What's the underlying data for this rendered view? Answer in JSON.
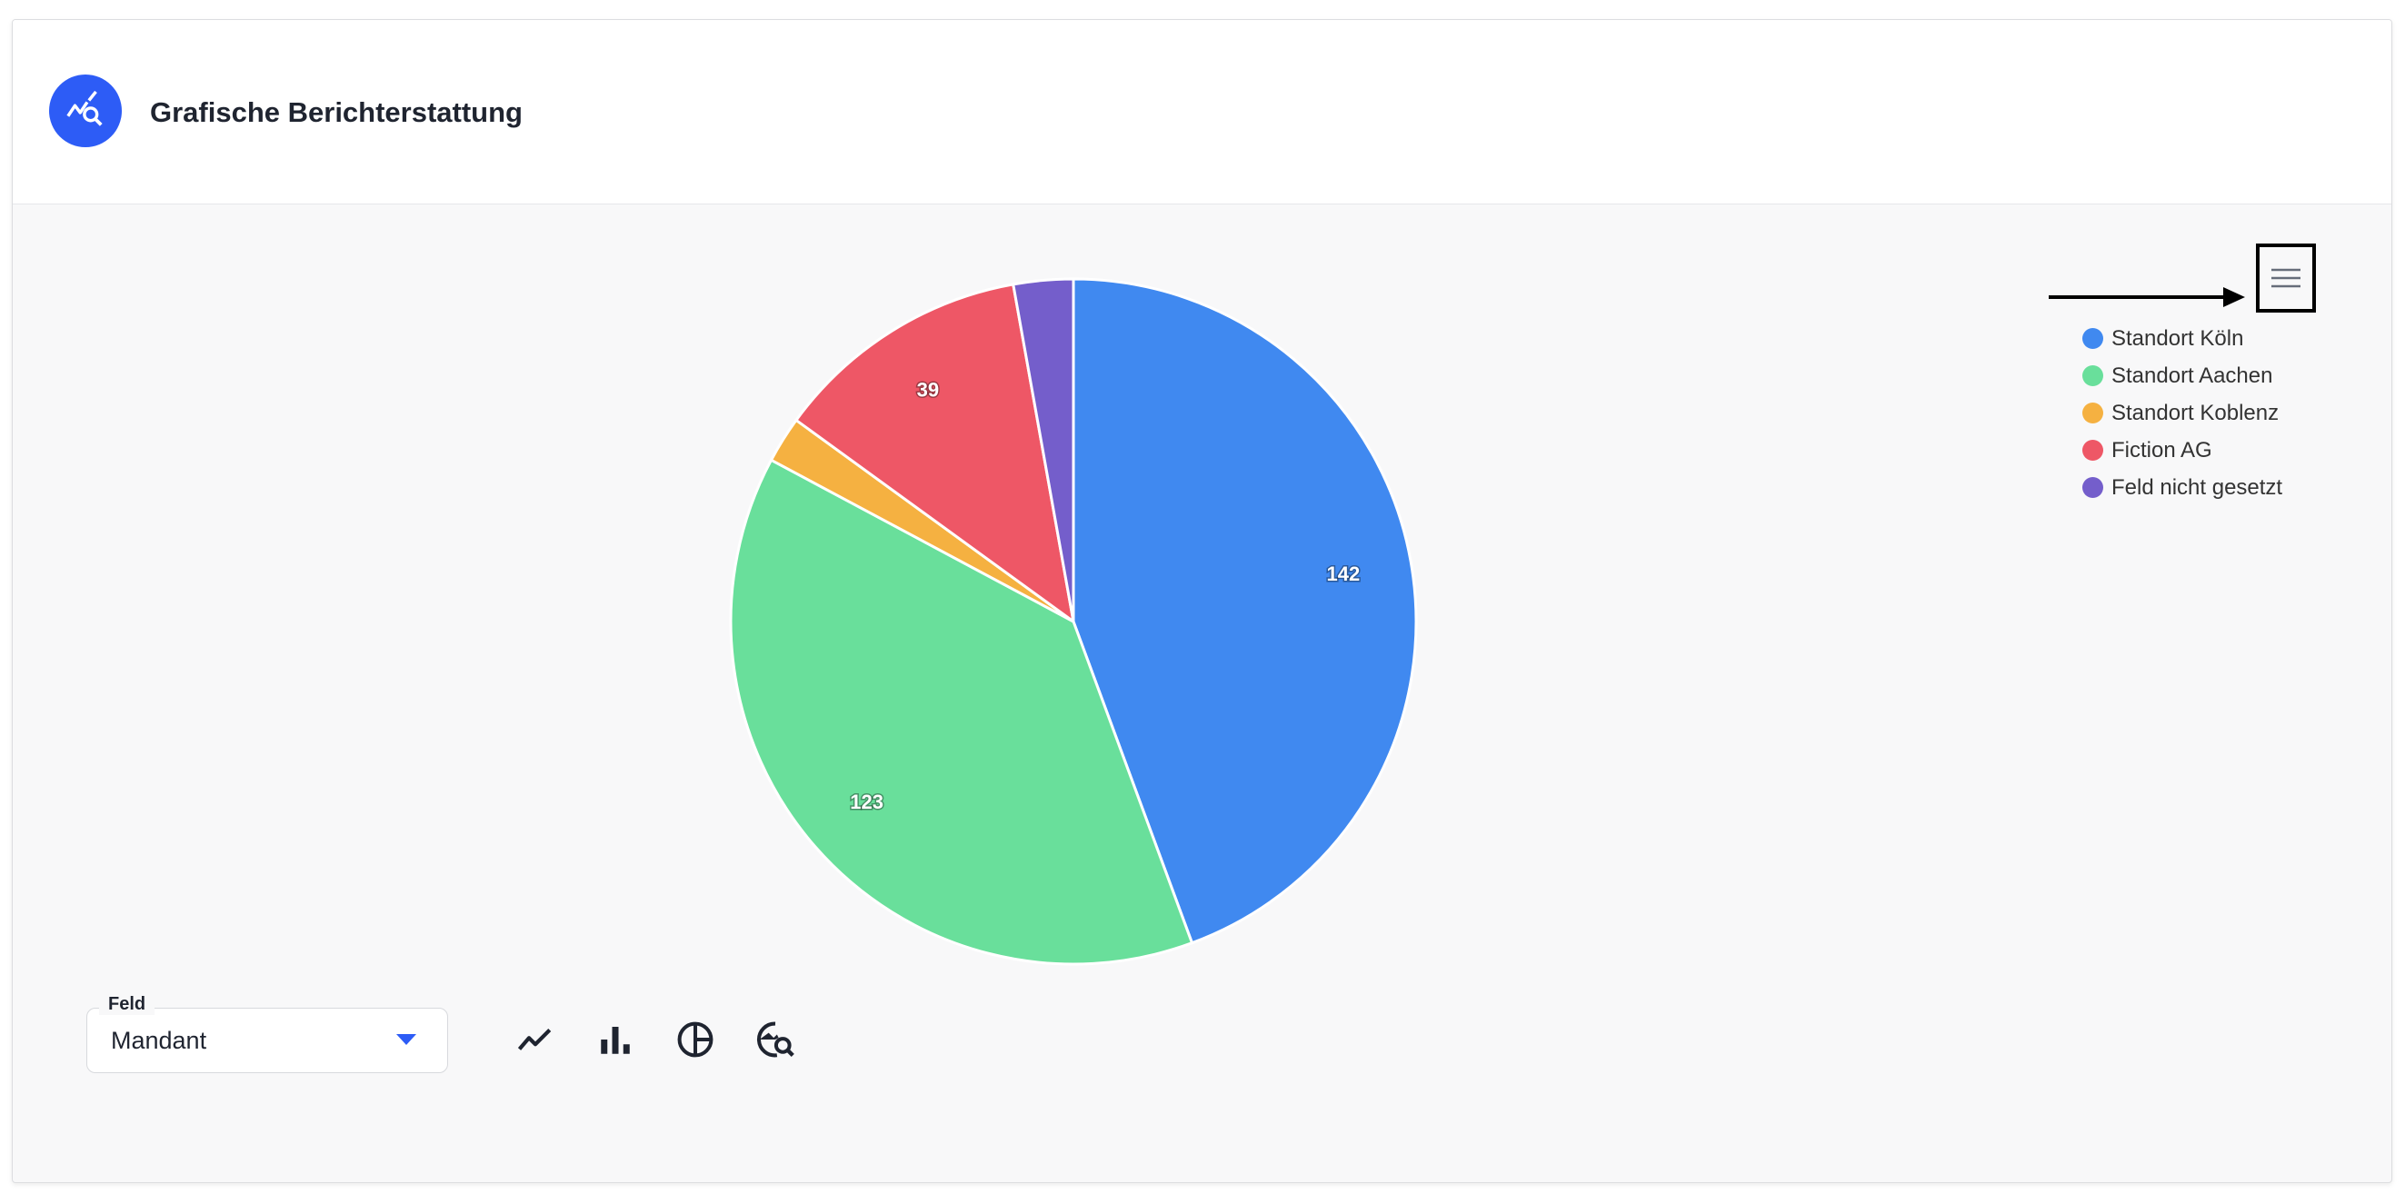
{
  "header": {
    "title": "Grafische Berichterstattung",
    "icon": "chart-search-icon",
    "icon_color": "#2d5cf6"
  },
  "chart_data": {
    "type": "pie",
    "categories": [
      "Standort Köln",
      "Standort Aachen",
      "Standort Koblenz",
      "Fiction AG",
      "Feld nicht gesetzt"
    ],
    "values": [
      142,
      123,
      7,
      39,
      9
    ],
    "data_labels": [
      "142",
      "123",
      "",
      "39",
      ""
    ],
    "colors": [
      "#4089f0",
      "#69df9b",
      "#f5b141",
      "#ee5766",
      "#745ecb"
    ],
    "legend": "top-right"
  },
  "menu_icon": "hamburger-menu-icon",
  "field": {
    "label": "Feld",
    "value": "Mandant"
  },
  "tools": [
    "line-chart-icon",
    "bar-chart-icon",
    "pie-chart-icon",
    "chart-search-icon"
  ]
}
